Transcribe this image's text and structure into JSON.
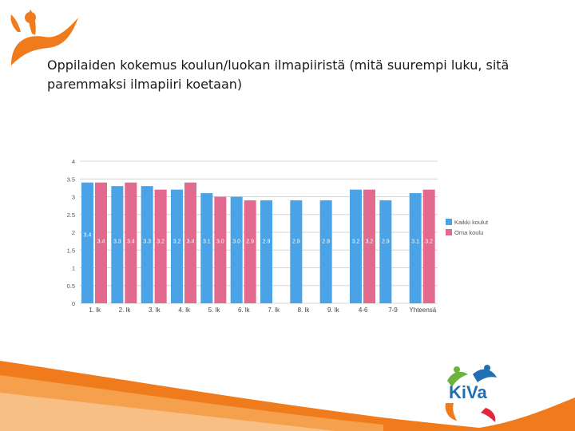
{
  "title": "Oppilaiden kokemus koulun/luokan ilmapiiristä (mitä suurempi luku, sitä paremmaksi ilmapiiri koetaan)",
  "logo": {
    "text": "KiVa",
    "icon": "kiva-figures-logo"
  },
  "colors": {
    "kaikki": "#4aa3e6",
    "oma": "#e26a8f",
    "accent_orange": "#f07b1d"
  },
  "chart_data": {
    "type": "bar",
    "categories": [
      "1. lk",
      "2. lk",
      "3. lk",
      "4. lk",
      "5. lk",
      "6. lk",
      "7. lk",
      "8. lk",
      "9. lk",
      "4-6",
      "7-9",
      "Yhteensä"
    ],
    "series": [
      {
        "name": "Kaikki koulut",
        "values": [
          3.4,
          3.3,
          3.3,
          3.2,
          3.1,
          3.0,
          2.9,
          2.9,
          2.9,
          3.2,
          2.9,
          3.1
        ],
        "labels": [
          "3.4",
          "3.3",
          "3.3",
          "3.2",
          "3.1",
          "3.0",
          "2.9",
          "2.9",
          "2.9",
          "3.2",
          "2.9",
          "3.1"
        ]
      },
      {
        "name": "Oma koulu",
        "values": [
          3.4,
          3.4,
          3.2,
          3.4,
          3.0,
          2.9,
          null,
          null,
          null,
          3.2,
          null,
          3.2
        ],
        "labels": [
          "3.4",
          "3.4",
          "3.2",
          "3.4",
          "3.0",
          "2.9",
          null,
          null,
          null,
          "3.2",
          null,
          "3.2"
        ]
      }
    ],
    "yticks": [
      "0",
      "0.5",
      "1",
      "1.5",
      "2",
      "2.5",
      "3",
      "3.5",
      "4"
    ],
    "ylim": [
      0,
      4
    ],
    "grid": true,
    "legend": "right"
  }
}
